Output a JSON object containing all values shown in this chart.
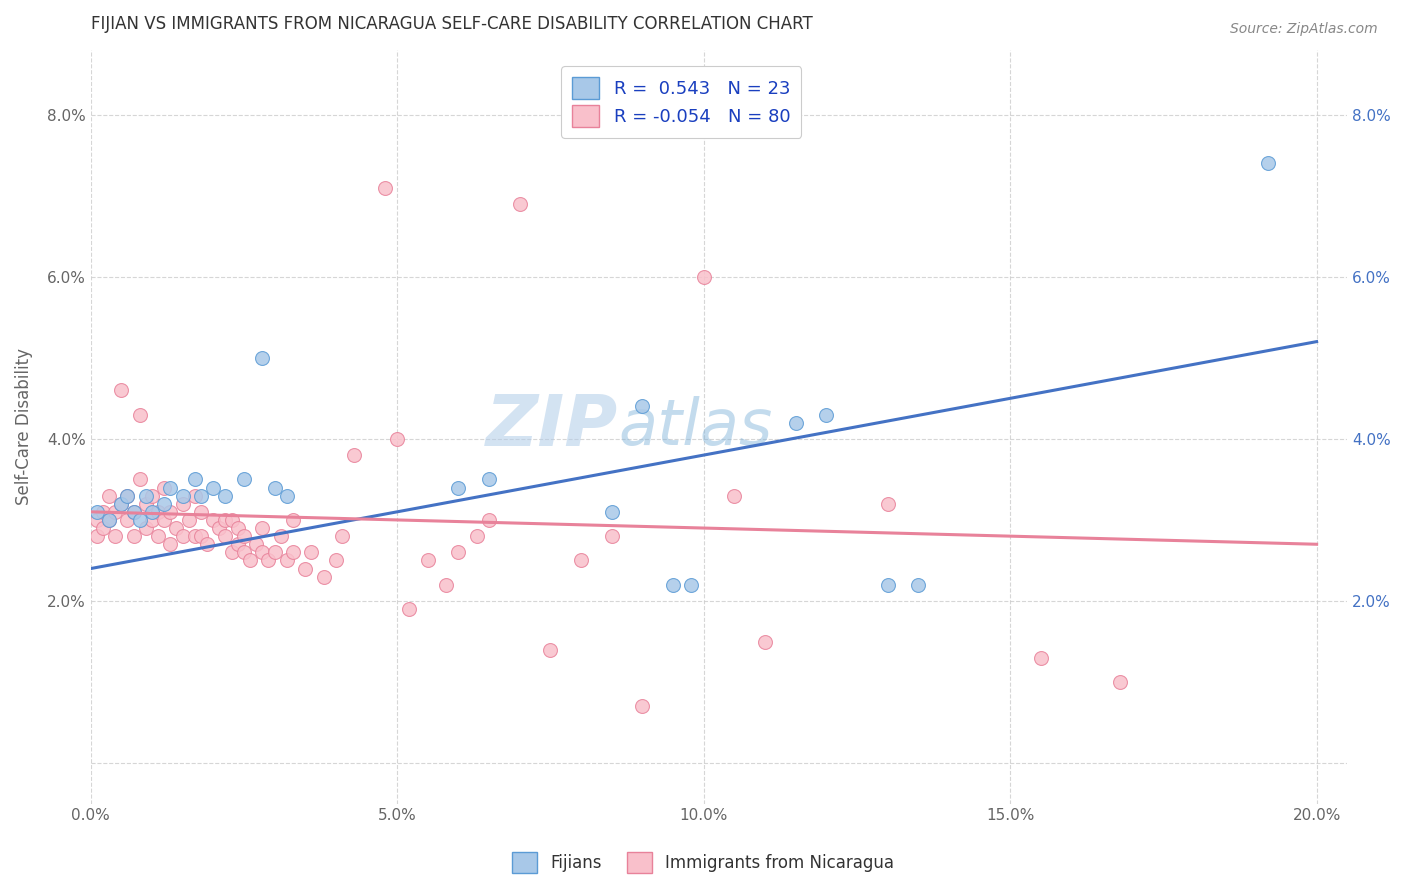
{
  "title": "FIJIAN VS IMMIGRANTS FROM NICARAGUA SELF-CARE DISABILITY CORRELATION CHART",
  "source": "Source: ZipAtlas.com",
  "ylabel": "Self-Care Disability",
  "xlim": [
    0.0,
    0.205
  ],
  "ylim": [
    -0.005,
    0.088
  ],
  "xticks": [
    0.0,
    0.05,
    0.1,
    0.15,
    0.2
  ],
  "xtick_labels": [
    "0.0%",
    "5.0%",
    "10.0%",
    "15.0%",
    "20.0%"
  ],
  "yticks": [
    0.0,
    0.02,
    0.04,
    0.06,
    0.08
  ],
  "ytick_labels_left": [
    "",
    "2.0%",
    "4.0%",
    "6.0%",
    "8.0%"
  ],
  "ytick_labels_right": [
    "",
    "2.0%",
    "4.0%",
    "6.0%",
    "8.0%"
  ],
  "fijian_scatter": [
    [
      0.001,
      0.031
    ],
    [
      0.003,
      0.03
    ],
    [
      0.005,
      0.032
    ],
    [
      0.006,
      0.033
    ],
    [
      0.007,
      0.031
    ],
    [
      0.008,
      0.03
    ],
    [
      0.009,
      0.033
    ],
    [
      0.01,
      0.031
    ],
    [
      0.012,
      0.032
    ],
    [
      0.013,
      0.034
    ],
    [
      0.015,
      0.033
    ],
    [
      0.017,
      0.035
    ],
    [
      0.018,
      0.033
    ],
    [
      0.02,
      0.034
    ],
    [
      0.022,
      0.033
    ],
    [
      0.025,
      0.035
    ],
    [
      0.028,
      0.05
    ],
    [
      0.03,
      0.034
    ],
    [
      0.032,
      0.033
    ],
    [
      0.06,
      0.034
    ],
    [
      0.065,
      0.035
    ],
    [
      0.085,
      0.031
    ],
    [
      0.09,
      0.044
    ],
    [
      0.095,
      0.022
    ],
    [
      0.098,
      0.022
    ],
    [
      0.115,
      0.042
    ],
    [
      0.12,
      0.043
    ],
    [
      0.13,
      0.022
    ],
    [
      0.135,
      0.022
    ],
    [
      0.192,
      0.074
    ]
  ],
  "nicaragua_scatter": [
    [
      0.001,
      0.028
    ],
    [
      0.001,
      0.03
    ],
    [
      0.002,
      0.029
    ],
    [
      0.002,
      0.031
    ],
    [
      0.003,
      0.03
    ],
    [
      0.003,
      0.033
    ],
    [
      0.004,
      0.028
    ],
    [
      0.004,
      0.031
    ],
    [
      0.005,
      0.032
    ],
    [
      0.005,
      0.046
    ],
    [
      0.006,
      0.03
    ],
    [
      0.006,
      0.033
    ],
    [
      0.007,
      0.028
    ],
    [
      0.007,
      0.031
    ],
    [
      0.008,
      0.035
    ],
    [
      0.008,
      0.043
    ],
    [
      0.009,
      0.029
    ],
    [
      0.009,
      0.032
    ],
    [
      0.01,
      0.03
    ],
    [
      0.01,
      0.033
    ],
    [
      0.011,
      0.028
    ],
    [
      0.011,
      0.031
    ],
    [
      0.012,
      0.03
    ],
    [
      0.012,
      0.034
    ],
    [
      0.013,
      0.027
    ],
    [
      0.013,
      0.031
    ],
    [
      0.014,
      0.029
    ],
    [
      0.015,
      0.028
    ],
    [
      0.015,
      0.032
    ],
    [
      0.016,
      0.03
    ],
    [
      0.017,
      0.028
    ],
    [
      0.017,
      0.033
    ],
    [
      0.018,
      0.028
    ],
    [
      0.018,
      0.031
    ],
    [
      0.019,
      0.027
    ],
    [
      0.02,
      0.03
    ],
    [
      0.021,
      0.029
    ],
    [
      0.022,
      0.028
    ],
    [
      0.022,
      0.03
    ],
    [
      0.023,
      0.026
    ],
    [
      0.023,
      0.03
    ],
    [
      0.024,
      0.027
    ],
    [
      0.024,
      0.029
    ],
    [
      0.025,
      0.026
    ],
    [
      0.025,
      0.028
    ],
    [
      0.026,
      0.025
    ],
    [
      0.027,
      0.027
    ],
    [
      0.028,
      0.026
    ],
    [
      0.028,
      0.029
    ],
    [
      0.029,
      0.025
    ],
    [
      0.03,
      0.026
    ],
    [
      0.031,
      0.028
    ],
    [
      0.032,
      0.025
    ],
    [
      0.033,
      0.026
    ],
    [
      0.033,
      0.03
    ],
    [
      0.035,
      0.024
    ],
    [
      0.036,
      0.026
    ],
    [
      0.038,
      0.023
    ],
    [
      0.04,
      0.025
    ],
    [
      0.041,
      0.028
    ],
    [
      0.043,
      0.038
    ],
    [
      0.05,
      0.04
    ],
    [
      0.052,
      0.019
    ],
    [
      0.055,
      0.025
    ],
    [
      0.058,
      0.022
    ],
    [
      0.06,
      0.026
    ],
    [
      0.063,
      0.028
    ],
    [
      0.065,
      0.03
    ],
    [
      0.07,
      0.069
    ],
    [
      0.075,
      0.014
    ],
    [
      0.09,
      0.007
    ],
    [
      0.1,
      0.06
    ],
    [
      0.105,
      0.033
    ],
    [
      0.11,
      0.015
    ],
    [
      0.13,
      0.032
    ],
    [
      0.155,
      0.013
    ],
    [
      0.168,
      0.01
    ],
    [
      0.048,
      0.071
    ],
    [
      0.08,
      0.025
    ],
    [
      0.085,
      0.028
    ]
  ],
  "fijian_line_x": [
    0.0,
    0.2
  ],
  "fijian_line_y": [
    0.024,
    0.052
  ],
  "nicaragua_line_x": [
    0.0,
    0.2
  ],
  "nicaragua_line_y": [
    0.031,
    0.027
  ],
  "fijian_line_color": "#4472c4",
  "nicaragua_line_color": "#e8829a",
  "fijian_dot_color": "#a8c8e8",
  "fijian_edge_color": "#5b9bd5",
  "nicaragua_dot_color": "#f9c0cb",
  "nicaragua_edge_color": "#e8829a",
  "watermark_zip": "ZIP",
  "watermark_atlas": "atlas",
  "background_color": "#ffffff",
  "grid_color": "#cccccc",
  "title_color": "#333333",
  "source_color": "#888888",
  "axis_label_color": "#666666",
  "tick_color_left": "#666666",
  "tick_color_right": "#4472c4",
  "legend_box_color": "#cccccc",
  "legend_text_color": "#1a3fbf"
}
